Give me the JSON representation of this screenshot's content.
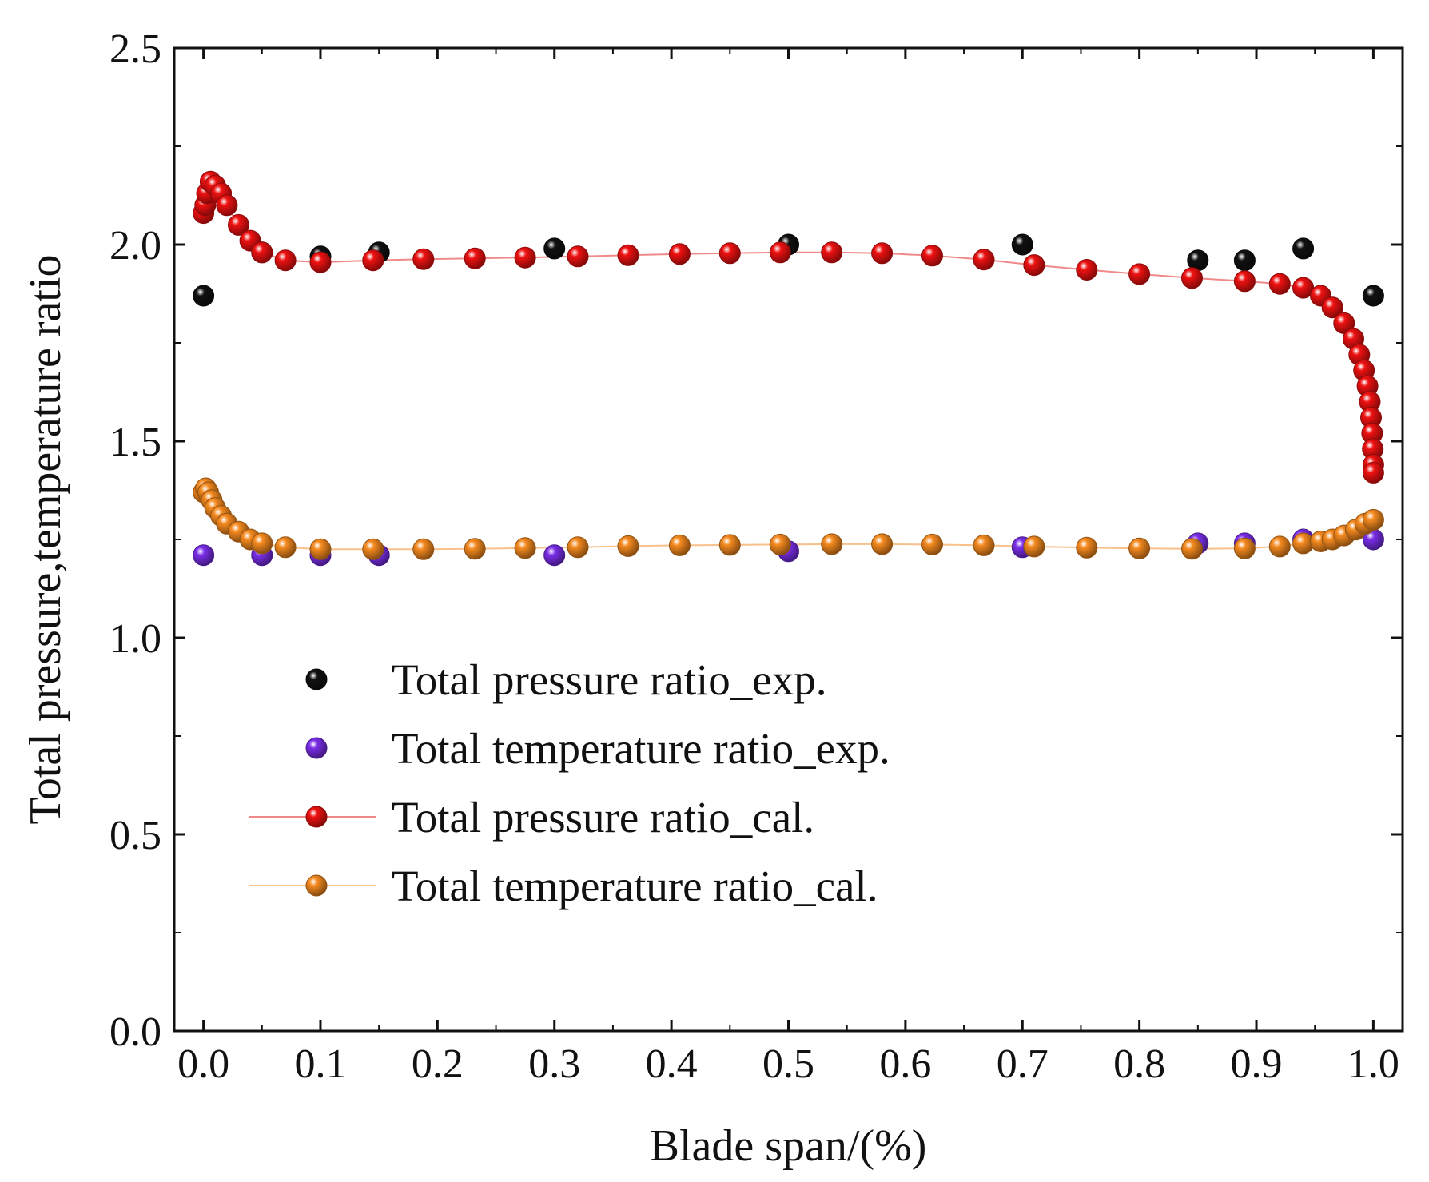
{
  "chart_data": {
    "type": "scatter",
    "title": "",
    "xlabel": "Blade span/(%)",
    "ylabel": "Total pressure,temperature ratio",
    "xlim": [
      -0.025,
      1.025
    ],
    "ylim": [
      0.0,
      2.5
    ],
    "x_ticks": [
      "0.0",
      "0.1",
      "0.2",
      "0.3",
      "0.4",
      "0.5",
      "0.6",
      "0.7",
      "0.8",
      "0.9",
      "1.0"
    ],
    "y_ticks": [
      "0.0",
      "0.5",
      "1.0",
      "1.5",
      "2.0",
      "2.5"
    ],
    "grid": false,
    "legend_position": "center-left",
    "series": [
      {
        "name": "Total pressure ratio_exp.",
        "kind": "markers",
        "color": "#111111",
        "points": [
          [
            0.0,
            1.87
          ],
          [
            0.05,
            1.98
          ],
          [
            0.1,
            1.97
          ],
          [
            0.15,
            1.98
          ],
          [
            0.3,
            1.99
          ],
          [
            0.5,
            2.0
          ],
          [
            0.7,
            2.0
          ],
          [
            0.85,
            1.96
          ],
          [
            0.89,
            1.96
          ],
          [
            0.94,
            1.99
          ],
          [
            1.0,
            1.87
          ]
        ]
      },
      {
        "name": "Total temperature ratio_exp.",
        "kind": "markers",
        "color": "#7a2ee8",
        "points": [
          [
            0.0,
            1.21
          ],
          [
            0.05,
            1.21
          ],
          [
            0.1,
            1.21
          ],
          [
            0.15,
            1.21
          ],
          [
            0.3,
            1.21
          ],
          [
            0.5,
            1.22
          ],
          [
            0.7,
            1.23
          ],
          [
            0.85,
            1.24
          ],
          [
            0.89,
            1.24
          ],
          [
            0.94,
            1.25
          ],
          [
            1.0,
            1.25
          ]
        ]
      },
      {
        "name": "Total pressure ratio_cal.",
        "kind": "line+markers",
        "color": "#ee1111",
        "line_color": "#f08a8a",
        "points": [
          [
            0.0,
            2.08
          ],
          [
            0.0015,
            2.1
          ],
          [
            0.003,
            2.13
          ],
          [
            0.006,
            2.16
          ],
          [
            0.01,
            2.15
          ],
          [
            0.015,
            2.13
          ],
          [
            0.02,
            2.1
          ],
          [
            0.03,
            2.05
          ],
          [
            0.04,
            2.01
          ],
          [
            0.05,
            1.98
          ],
          [
            0.07,
            1.96
          ],
          [
            0.1,
            1.955
          ],
          [
            0.145,
            1.96
          ],
          [
            0.188,
            1.963
          ],
          [
            0.232,
            1.965
          ],
          [
            0.275,
            1.967
          ],
          [
            0.32,
            1.97
          ],
          [
            0.363,
            1.973
          ],
          [
            0.407,
            1.976
          ],
          [
            0.45,
            1.978
          ],
          [
            0.493,
            1.98
          ],
          [
            0.537,
            1.98
          ],
          [
            0.58,
            1.978
          ],
          [
            0.623,
            1.972
          ],
          [
            0.667,
            1.962
          ],
          [
            0.71,
            1.948
          ],
          [
            0.755,
            1.936
          ],
          [
            0.8,
            1.925
          ],
          [
            0.845,
            1.915
          ],
          [
            0.89,
            1.907
          ],
          [
            0.92,
            1.9
          ],
          [
            0.94,
            1.89
          ],
          [
            0.955,
            1.87
          ],
          [
            0.965,
            1.84
          ],
          [
            0.975,
            1.8
          ],
          [
            0.983,
            1.76
          ],
          [
            0.988,
            1.72
          ],
          [
            0.992,
            1.68
          ],
          [
            0.995,
            1.64
          ],
          [
            0.997,
            1.6
          ],
          [
            0.998,
            1.56
          ],
          [
            0.999,
            1.52
          ],
          [
            0.9995,
            1.48
          ],
          [
            1.0,
            1.44
          ],
          [
            1.0,
            1.42
          ]
        ]
      },
      {
        "name": "Total temperature ratio_cal.",
        "kind": "line+markers",
        "color": "#f58a1f",
        "line_color": "#f8c08a",
        "points": [
          [
            0.0,
            1.37
          ],
          [
            0.002,
            1.38
          ],
          [
            0.004,
            1.37
          ],
          [
            0.007,
            1.35
          ],
          [
            0.01,
            1.33
          ],
          [
            0.015,
            1.31
          ],
          [
            0.02,
            1.29
          ],
          [
            0.03,
            1.27
          ],
          [
            0.04,
            1.25
          ],
          [
            0.05,
            1.24
          ],
          [
            0.07,
            1.23
          ],
          [
            0.1,
            1.225
          ],
          [
            0.145,
            1.225
          ],
          [
            0.188,
            1.225
          ],
          [
            0.232,
            1.226
          ],
          [
            0.275,
            1.228
          ],
          [
            0.32,
            1.23
          ],
          [
            0.363,
            1.233
          ],
          [
            0.407,
            1.235
          ],
          [
            0.45,
            1.236
          ],
          [
            0.493,
            1.237
          ],
          [
            0.537,
            1.238
          ],
          [
            0.58,
            1.238
          ],
          [
            0.623,
            1.237
          ],
          [
            0.667,
            1.235
          ],
          [
            0.71,
            1.232
          ],
          [
            0.755,
            1.229
          ],
          [
            0.8,
            1.227
          ],
          [
            0.845,
            1.226
          ],
          [
            0.89,
            1.227
          ],
          [
            0.92,
            1.232
          ],
          [
            0.94,
            1.24
          ],
          [
            0.955,
            1.245
          ],
          [
            0.965,
            1.25
          ],
          [
            0.975,
            1.26
          ],
          [
            0.985,
            1.275
          ],
          [
            0.993,
            1.29
          ],
          [
            1.0,
            1.3
          ]
        ]
      }
    ]
  }
}
